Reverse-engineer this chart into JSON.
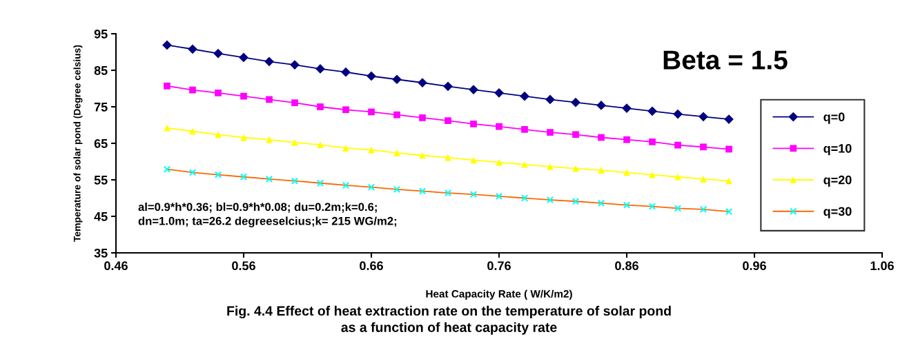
{
  "chart_data": {
    "type": "line",
    "xlabel": "Heat Capacity Rate ( W/K/m2)",
    "ylabel": "Temperature of solar pond (Degree celsius)",
    "x": [
      0.5,
      0.52,
      0.54,
      0.56,
      0.58,
      0.6,
      0.62,
      0.64,
      0.66,
      0.68,
      0.7,
      0.72,
      0.74,
      0.76,
      0.78,
      0.8,
      0.82,
      0.84,
      0.86,
      0.88,
      0.9,
      0.92,
      0.94
    ],
    "series": [
      {
        "name": "q=0",
        "color": "#000080",
        "marker": "diamond",
        "values": [
          91.9,
          90.8,
          89.6,
          88.5,
          87.4,
          86.5,
          85.4,
          84.5,
          83.4,
          82.5,
          81.6,
          80.6,
          79.7,
          78.8,
          77.9,
          77.0,
          76.2,
          75.4,
          74.6,
          73.8,
          73.0,
          72.3,
          71.6
        ]
      },
      {
        "name": "q=10",
        "color": "#ff00ff",
        "marker": "square",
        "values": [
          80.7,
          79.6,
          78.8,
          77.9,
          77.0,
          76.1,
          75.0,
          74.2,
          73.6,
          72.8,
          72.0,
          71.2,
          70.3,
          69.6,
          68.8,
          68.0,
          67.4,
          66.6,
          66.0,
          65.4,
          64.5,
          64.0,
          63.4
        ]
      },
      {
        "name": "q=20",
        "color": "#ffff00",
        "marker": "triangle",
        "values": [
          69.2,
          68.3,
          67.4,
          66.6,
          66.0,
          65.2,
          64.6,
          63.7,
          63.2,
          62.4,
          61.7,
          61.1,
          60.4,
          59.8,
          59.2,
          58.6,
          58.1,
          57.6,
          57.0,
          56.4,
          55.8,
          55.2,
          54.7
        ]
      },
      {
        "name": "q=30",
        "color": "#ff6600",
        "marker": "cross",
        "colors": [
          "#00ffff",
          "#00ffff",
          "#00ffff",
          "#00ffff",
          "#00ffff",
          "#00ffff",
          "#00ffff",
          "#00ffff",
          "#00ffff",
          "#00ffff",
          "#00ffff",
          "#00ffff",
          "#00ffff",
          "#00ffff",
          "#00ffff",
          "#00ffff",
          "#00ffff",
          "#00ffff",
          "#00ffff",
          "#00ffff",
          "#00ffff",
          "#00ffff",
          "#00ffff"
        ],
        "values": [
          57.9,
          57.0,
          56.4,
          55.8,
          55.2,
          54.7,
          54.1,
          53.5,
          53.0,
          52.4,
          51.9,
          51.4,
          51.0,
          50.5,
          50.0,
          49.5,
          49.1,
          48.6,
          48.1,
          47.7,
          47.2,
          46.9,
          46.3
        ]
      }
    ],
    "xlim": [
      0.46,
      1.06
    ],
    "xticks": [
      {
        "value": 0.46,
        "label": "0.46"
      },
      {
        "value": 0.56,
        "label": "0.56"
      },
      {
        "value": 0.66,
        "label": "0.66"
      },
      {
        "value": 0.76,
        "label": "0.76"
      },
      {
        "value": 0.86,
        "label": "0.86"
      },
      {
        "value": 0.96,
        "label": "0.96"
      },
      {
        "value": 1.06,
        "label": "1.06"
      }
    ],
    "ylim": [
      35,
      95
    ],
    "yticks": [
      35,
      45,
      55,
      65,
      75,
      85,
      95
    ],
    "grid": false,
    "legend": "right",
    "line_style": "solid",
    "annotations": [
      "Beta = 1.5",
      "al=0.9*h*0.36; bl=0.9*h*0.08; du=0.2m;k=0.6;\ndn=1.0m; ta=26.2 degreeselcius;k= 215 WG/m2;",
      "Fig. 4.4 Effect of heat extraction rate on the temperature of solar pond\nas a function of heat capacity rate"
    ]
  }
}
